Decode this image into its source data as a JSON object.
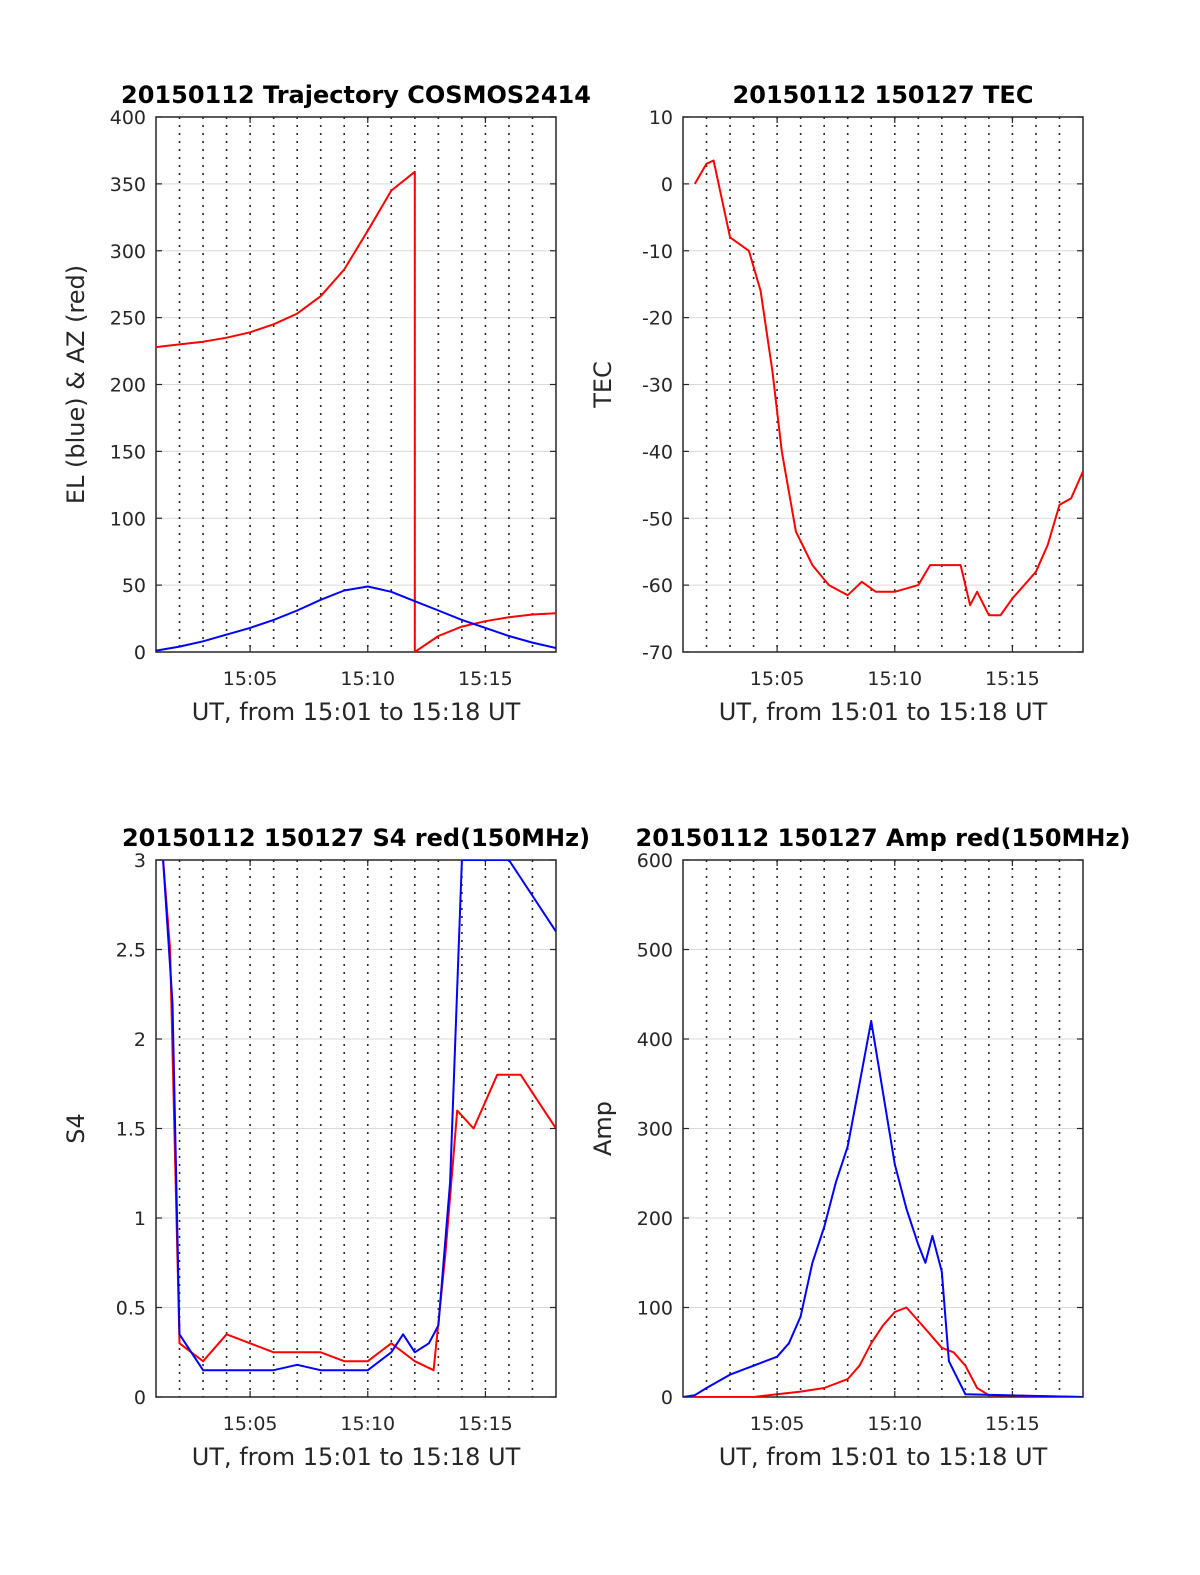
{
  "chart_data": [
    {
      "type": "line",
      "title": "20150112 Trajectory COSMOS2414",
      "xlabel": "UT, from 15:01 to 15:18 UT",
      "ylabel": "EL (blue) & AZ (red)",
      "xlim": [
        "15:01",
        "15:18"
      ],
      "ylim": [
        0,
        400
      ],
      "xticks": [
        "15:05",
        "15:10",
        "15:15"
      ],
      "yticks": [
        0,
        50,
        100,
        150,
        200,
        250,
        300,
        350,
        400
      ],
      "grid": "horizontal solid, vertical dotted",
      "series": [
        {
          "color": "#ff0000",
          "x": [
            "15:01",
            "15:02",
            "15:03",
            "15:04",
            "15:05",
            "15:06",
            "15:07",
            "15:08",
            "15:09",
            "15:10",
            "15:11",
            "15:12",
            "15:12",
            "15:13",
            "15:14",
            "15:15",
            "15:16",
            "15:17",
            "15:18"
          ],
          "y": [
            228,
            230,
            232,
            235,
            239,
            245,
            253,
            266,
            286,
            315,
            345,
            359,
            0,
            12,
            19,
            23,
            26,
            28,
            29
          ]
        },
        {
          "color": "#0000ff",
          "x": [
            "15:01",
            "15:02",
            "15:03",
            "15:04",
            "15:05",
            "15:06",
            "15:07",
            "15:08",
            "15:09",
            "15:10",
            "15:11",
            "15:12",
            "15:13",
            "15:14",
            "15:15",
            "15:16",
            "15:17",
            "15:18"
          ],
          "y": [
            1,
            4,
            8,
            13,
            18,
            24,
            31,
            39,
            46,
            49,
            45,
            38,
            31,
            24,
            18,
            12,
            7,
            3
          ]
        }
      ]
    },
    {
      "type": "line",
      "title": "20150112 150127 TEC",
      "xlabel": "UT, from 15:01 to 15:18 UT",
      "ylabel": "TEC",
      "xlim": [
        "15:01",
        "15:18"
      ],
      "ylim": [
        -70,
        10
      ],
      "xticks": [
        "15:05",
        "15:10",
        "15:15"
      ],
      "yticks": [
        -70,
        -60,
        -50,
        -40,
        -30,
        -20,
        -10,
        0,
        10
      ],
      "grid": "horizontal solid, vertical dotted",
      "series": [
        {
          "color": "#ff0000",
          "x": [
            "15:01.5",
            "15:02",
            "15:02.3",
            "15:03",
            "15:03.8",
            "15:04.3",
            "15:04.8",
            "15:05.2",
            "15:05.8",
            "15:06.5",
            "15:07.2",
            "15:08",
            "15:08.6",
            "15:09.2",
            "15:10",
            "15:11",
            "15:11.5",
            "15:12",
            "15:12.8",
            "15:13.2",
            "15:13.5",
            "15:14",
            "15:14.5",
            "15:15",
            "15:15.5",
            "15:16",
            "15:16.5",
            "15:17",
            "15:17.5",
            "15:18"
          ],
          "y": [
            0,
            3,
            3.5,
            -8,
            -10,
            -16,
            -28,
            -40,
            -52,
            -57,
            -60,
            -61.5,
            -59.5,
            -61,
            -61,
            -60,
            -57,
            -57,
            -57,
            -63,
            -61,
            -64.5,
            -64.5,
            -62,
            -60,
            -58,
            -54,
            -48,
            -47,
            -43
          ]
        }
      ]
    },
    {
      "type": "line",
      "title": "20150112 150127 S4 red(150MHz)",
      "xlabel": "UT, from 15:01 to 15:18 UT",
      "ylabel": "S4",
      "xlim": [
        "15:01",
        "15:18"
      ],
      "ylim": [
        0,
        3
      ],
      "xticks": [
        "15:05",
        "15:10",
        "15:15"
      ],
      "yticks": [
        0,
        0.5,
        1,
        1.5,
        2,
        2.5,
        3
      ],
      "grid": "horizontal solid, vertical dotted",
      "series": [
        {
          "color": "#ff0000",
          "x": [
            "15:01.3",
            "15:01.6",
            "15:02",
            "15:02.5",
            "15:03",
            "15:04",
            "15:05",
            "15:06",
            "15:07",
            "15:08",
            "15:09",
            "15:10",
            "15:11",
            "15:12",
            "15:12.8",
            "15:13.3",
            "15:13.8",
            "15:14.5",
            "15:15.5",
            "15:16.5",
            "15:17.5",
            "15:18"
          ],
          "y": [
            3,
            2.5,
            0.3,
            0.25,
            0.2,
            0.35,
            0.3,
            0.25,
            0.25,
            0.25,
            0.2,
            0.2,
            0.3,
            0.2,
            0.15,
            0.8,
            1.6,
            1.5,
            1.8,
            1.8,
            1.6,
            1.5
          ]
        },
        {
          "color": "#0000ff",
          "x": [
            "15:01.3",
            "15:01.7",
            "15:02",
            "15:02.5",
            "15:03",
            "15:04",
            "15:05",
            "15:06",
            "15:07",
            "15:08",
            "15:09",
            "15:10",
            "15:11",
            "15:11.5",
            "15:12",
            "15:12.6",
            "15:13",
            "15:13.5",
            "15:14",
            "15:15",
            "15:16",
            "15:17",
            "15:18"
          ],
          "y": [
            3,
            2.2,
            0.35,
            0.25,
            0.15,
            0.15,
            0.15,
            0.15,
            0.18,
            0.15,
            0.15,
            0.15,
            0.25,
            0.35,
            0.25,
            0.3,
            0.4,
            1.2,
            3,
            3,
            3,
            2.8,
            2.6
          ]
        }
      ]
    },
    {
      "type": "line",
      "title": "20150112 150127 Amp red(150MHz)",
      "xlabel": "UT, from 15:01 to 15:18 UT",
      "ylabel": "Amp",
      "xlim": [
        "15:01",
        "15:18"
      ],
      "ylim": [
        0,
        600
      ],
      "xticks": [
        "15:05",
        "15:10",
        "15:15"
      ],
      "yticks": [
        0,
        100,
        200,
        300,
        400,
        500,
        600
      ],
      "grid": "horizontal solid, vertical dotted",
      "series": [
        {
          "color": "#ff0000",
          "x": [
            "15:01",
            "15:04",
            "15:05",
            "15:06",
            "15:07",
            "15:08",
            "15:08.5",
            "15:09",
            "15:09.5",
            "15:10",
            "15:10.5",
            "15:11",
            "15:11.5",
            "15:12",
            "15:12.5",
            "15:13",
            "15:13.5",
            "15:14",
            "15:18"
          ],
          "y": [
            0,
            0,
            3,
            6,
            10,
            20,
            35,
            60,
            80,
            95,
            100,
            85,
            70,
            55,
            50,
            35,
            10,
            2,
            0
          ]
        },
        {
          "color": "#0000ff",
          "x": [
            "15:01",
            "15:01.5",
            "15:02",
            "15:03",
            "15:04",
            "15:05",
            "15:05.5",
            "15:06",
            "15:06.5",
            "15:07",
            "15:07.5",
            "15:08",
            "15:08.5",
            "15:09",
            "15:09.5",
            "15:10",
            "15:10.5",
            "15:11",
            "15:11.3",
            "15:11.6",
            "15:12",
            "15:12.3",
            "15:13",
            "15:18"
          ],
          "y": [
            0,
            2,
            10,
            25,
            35,
            45,
            60,
            90,
            150,
            190,
            240,
            280,
            350,
            420,
            340,
            260,
            210,
            170,
            150,
            180,
            140,
            40,
            3,
            0
          ]
        }
      ]
    }
  ]
}
